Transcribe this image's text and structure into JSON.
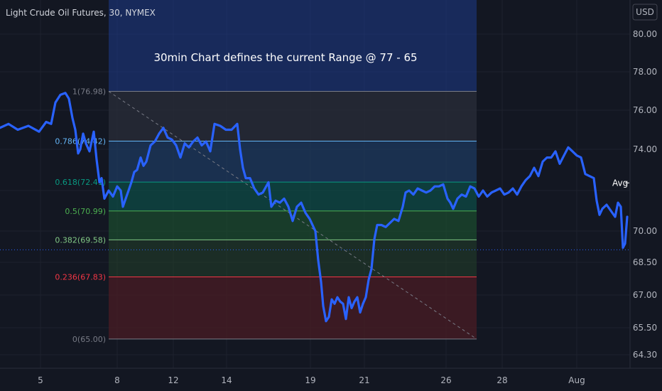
{
  "header": {
    "title": "Light Crude Oil Futures, 30, NYMEX",
    "currency": "USD"
  },
  "chart_data": {
    "type": "line",
    "annotation": "30min Chart defines the current Range @ 77 - 65",
    "x_ticks": [
      "5",
      "8",
      "12",
      "14",
      "19",
      "21",
      "26",
      "28",
      "Aug"
    ],
    "y_ticks": [
      80.0,
      78.0,
      76.0,
      74.0,
      72.0,
      70.0,
      68.5,
      67.0,
      65.5,
      64.3
    ],
    "y_tick_labels": [
      "80.00",
      "78.00",
      "76.00",
      "74.00",
      "72.00",
      "70.00",
      "68.50",
      "67.00",
      "65.50",
      "64.30"
    ],
    "ylim": [
      63.5,
      81.2
    ],
    "fib_levels": [
      {
        "ratio": "1",
        "value": 76.98,
        "label": "1(76.98)",
        "color": "#787b86"
      },
      {
        "ratio": "0.786",
        "value": 74.42,
        "label": "0.786(74.42)",
        "color": "#64b5f6"
      },
      {
        "ratio": "0.618",
        "value": 72.41,
        "label": "0.618(72.41)",
        "color": "#089981"
      },
      {
        "ratio": "0.5",
        "value": 70.99,
        "label": "0.5(70.99)",
        "color": "#4caf50"
      },
      {
        "ratio": "0.382",
        "value": 69.58,
        "label": "0.382(69.58)",
        "color": "#81c784"
      },
      {
        "ratio": "0.236",
        "value": 67.83,
        "label": "0.236(67.83)",
        "color": "#f23645"
      },
      {
        "ratio": "0",
        "value": 65.0,
        "label": "0(65.00)",
        "color": "#787b86"
      }
    ],
    "avg_badge": {
      "label": "Avg",
      "value": "72.37"
    },
    "current_price_line": 69.1,
    "series": [
      {
        "color": "#2962ff",
        "points": [
          [
            0,
            75.1
          ],
          [
            12,
            75.3
          ],
          [
            25,
            75.0
          ],
          [
            40,
            75.2
          ],
          [
            55,
            74.9
          ],
          [
            65,
            75.4
          ],
          [
            72,
            75.3
          ],
          [
            78,
            76.4
          ],
          [
            85,
            76.8
          ],
          [
            92,
            76.9
          ],
          [
            97,
            76.6
          ],
          [
            102,
            75.6
          ],
          [
            106,
            75.0
          ],
          [
            110,
            73.8
          ],
          [
            113,
            74.0
          ],
          [
            117,
            74.8
          ],
          [
            121,
            74.3
          ],
          [
            126,
            73.9
          ],
          [
            132,
            74.9
          ],
          [
            136,
            73.5
          ],
          [
            140,
            72.4
          ],
          [
            143,
            72.6
          ],
          [
            147,
            71.6
          ],
          [
            153,
            72.0
          ],
          [
            159,
            71.7
          ],
          [
            165,
            72.2
          ],
          [
            170,
            72.0
          ],
          [
            173,
            71.2
          ],
          [
            177,
            71.6
          ],
          [
            181,
            72.0
          ],
          [
            185,
            72.4
          ],
          [
            189,
            72.9
          ],
          [
            193,
            73.0
          ],
          [
            198,
            73.6
          ],
          [
            202,
            73.2
          ],
          [
            206,
            73.4
          ],
          [
            212,
            74.2
          ],
          [
            218,
            74.4
          ],
          [
            224,
            74.8
          ],
          [
            230,
            75.1
          ],
          [
            236,
            74.6
          ],
          [
            242,
            74.5
          ],
          [
            248,
            74.2
          ],
          [
            254,
            73.6
          ],
          [
            260,
            74.3
          ],
          [
            266,
            74.1
          ],
          [
            272,
            74.4
          ],
          [
            278,
            74.6
          ],
          [
            284,
            74.2
          ],
          [
            290,
            74.4
          ],
          [
            296,
            73.9
          ],
          [
            302,
            75.3
          ],
          [
            310,
            75.2
          ],
          [
            318,
            75.0
          ],
          [
            326,
            75.0
          ],
          [
            334,
            75.3
          ],
          [
            338,
            74.0
          ],
          [
            342,
            73.1
          ],
          [
            346,
            72.6
          ],
          [
            352,
            72.6
          ],
          [
            358,
            72.1
          ],
          [
            364,
            71.8
          ],
          [
            370,
            71.9
          ],
          [
            378,
            72.4
          ],
          [
            382,
            71.2
          ],
          [
            388,
            71.5
          ],
          [
            394,
            71.4
          ],
          [
            400,
            71.6
          ],
          [
            406,
            71.2
          ],
          [
            412,
            70.5
          ],
          [
            418,
            71.2
          ],
          [
            424,
            71.4
          ],
          [
            430,
            70.9
          ],
          [
            436,
            70.6
          ],
          [
            440,
            70.3
          ],
          [
            444,
            70.0
          ],
          [
            448,
            68.6
          ],
          [
            452,
            67.6
          ],
          [
            455,
            66.5
          ],
          [
            459,
            65.8
          ],
          [
            463,
            66.0
          ],
          [
            467,
            66.8
          ],
          [
            471,
            66.6
          ],
          [
            475,
            66.9
          ],
          [
            479,
            66.7
          ],
          [
            483,
            66.6
          ],
          [
            487,
            65.9
          ],
          [
            491,
            66.9
          ],
          [
            495,
            66.4
          ],
          [
            499,
            66.7
          ],
          [
            503,
            66.9
          ],
          [
            507,
            66.2
          ],
          [
            511,
            66.6
          ],
          [
            515,
            66.9
          ],
          [
            519,
            67.7
          ],
          [
            523,
            68.2
          ],
          [
            527,
            69.6
          ],
          [
            531,
            70.3
          ],
          [
            537,
            70.3
          ],
          [
            543,
            70.2
          ],
          [
            549,
            70.4
          ],
          [
            555,
            70.6
          ],
          [
            561,
            70.5
          ],
          [
            567,
            71.2
          ],
          [
            571,
            71.9
          ],
          [
            576,
            72.0
          ],
          [
            582,
            71.8
          ],
          [
            588,
            72.1
          ],
          [
            594,
            72.0
          ],
          [
            600,
            71.9
          ],
          [
            606,
            72.0
          ],
          [
            612,
            72.2
          ],
          [
            618,
            72.2
          ],
          [
            624,
            72.3
          ],
          [
            630,
            71.6
          ],
          [
            634,
            71.4
          ],
          [
            638,
            71.1
          ],
          [
            644,
            71.6
          ],
          [
            650,
            71.8
          ],
          [
            656,
            71.7
          ],
          [
            662,
            72.2
          ],
          [
            668,
            72.1
          ],
          [
            674,
            71.7
          ],
          [
            680,
            72.0
          ],
          [
            686,
            71.7
          ],
          [
            692,
            71.9
          ],
          [
            698,
            72.0
          ],
          [
            704,
            72.1
          ],
          [
            710,
            71.8
          ],
          [
            716,
            71.9
          ],
          [
            722,
            72.1
          ],
          [
            728,
            71.8
          ],
          [
            734,
            72.2
          ],
          [
            740,
            72.5
          ],
          [
            746,
            72.7
          ],
          [
            752,
            73.1
          ],
          [
            758,
            72.7
          ],
          [
            764,
            73.4
          ],
          [
            770,
            73.6
          ],
          [
            776,
            73.6
          ],
          [
            782,
            73.9
          ],
          [
            788,
            73.3
          ],
          [
            794,
            73.7
          ],
          [
            800,
            74.1
          ],
          [
            806,
            73.9
          ],
          [
            812,
            73.7
          ],
          [
            818,
            73.6
          ],
          [
            824,
            72.8
          ],
          [
            830,
            72.7
          ],
          [
            836,
            72.6
          ],
          [
            840,
            71.5
          ],
          [
            844,
            70.8
          ],
          [
            848,
            71.1
          ],
          [
            854,
            71.3
          ],
          [
            860,
            71.0
          ],
          [
            866,
            70.7
          ],
          [
            870,
            71.4
          ],
          [
            874,
            71.2
          ],
          [
            877,
            69.2
          ],
          [
            880,
            69.4
          ],
          [
            883,
            70.7
          ]
        ]
      }
    ]
  }
}
